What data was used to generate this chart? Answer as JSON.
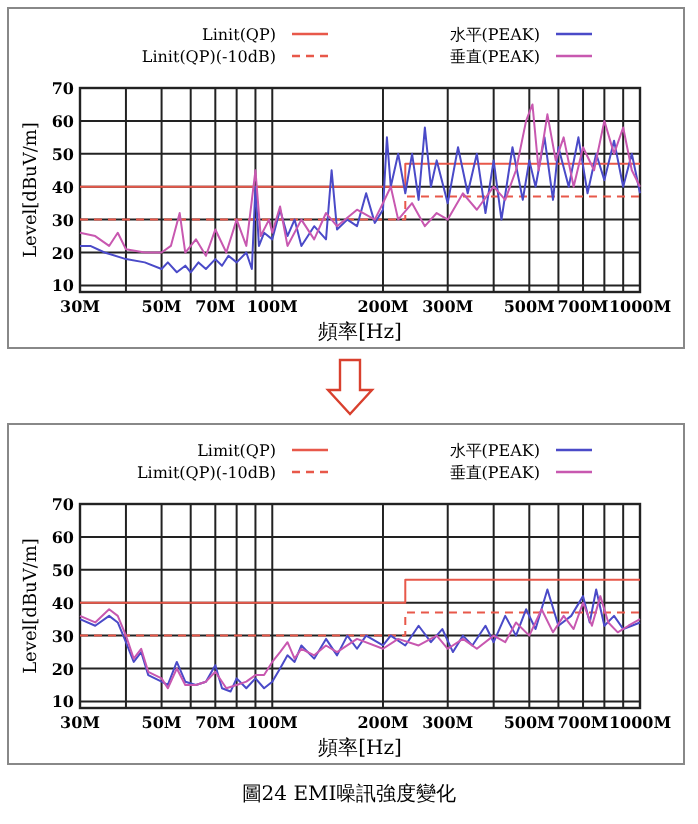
{
  "chart_data": [
    {
      "type": "line",
      "xlabel": "頻率[Hz]",
      "ylabel": "Level[dBuV/m]",
      "log": "x",
      "grid": true,
      "legend": "top",
      "xlim": [
        30,
        1000
      ],
      "ylim": [
        8,
        70
      ],
      "yticks": [
        10,
        20,
        30,
        40,
        50,
        60,
        70
      ],
      "xticks": [
        {
          "value": 30,
          "label": "30M"
        },
        {
          "value": 40,
          "label": null
        },
        {
          "value": 50,
          "label": "50M"
        },
        {
          "value": 60,
          "label": null
        },
        {
          "value": 70,
          "label": "70M"
        },
        {
          "value": 80,
          "label": null
        },
        {
          "value": 90,
          "label": null
        },
        {
          "value": 100,
          "label": "100M"
        },
        {
          "value": 200,
          "label": "200M"
        },
        {
          "value": 300,
          "label": "300M"
        },
        {
          "value": 400,
          "label": null
        },
        {
          "value": 500,
          "label": "500M"
        },
        {
          "value": 600,
          "label": null
        },
        {
          "value": 700,
          "label": "700M"
        },
        {
          "value": 800,
          "label": null
        },
        {
          "value": 900,
          "label": null
        },
        {
          "value": 1000,
          "label": "1000M"
        }
      ],
      "series": [
        {
          "name": "Linit(QP)",
          "color": "#e8584a",
          "line_style": "solid",
          "x": [
            30,
            230,
            230,
            1000
          ],
          "values": [
            40,
            40,
            47,
            47
          ]
        },
        {
          "name": "Linit(QP)(-10dB)",
          "color": "#e8584a",
          "line_style": "dashed",
          "x": [
            30,
            230,
            230,
            1000
          ],
          "values": [
            30,
            30,
            37,
            37
          ]
        },
        {
          "name": "水平(PEAK)",
          "color": "#4a4ac8",
          "line_style": "solid",
          "x": [
            30,
            32,
            35,
            40,
            45,
            50,
            52,
            55,
            58,
            60,
            63,
            66,
            70,
            73,
            76,
            80,
            85,
            88,
            90,
            92,
            95,
            100,
            105,
            110,
            115,
            120,
            130,
            140,
            145,
            150,
            160,
            170,
            180,
            190,
            200,
            205,
            210,
            220,
            230,
            240,
            250,
            260,
            270,
            280,
            300,
            320,
            340,
            360,
            380,
            400,
            420,
            450,
            480,
            500,
            520,
            550,
            580,
            600,
            640,
            680,
            720,
            760,
            800,
            850,
            900,
            950,
            1000
          ],
          "values": [
            22,
            22,
            20,
            18,
            17,
            15,
            17,
            14,
            16,
            14,
            17,
            15,
            18,
            16,
            19,
            17,
            20,
            15,
            40,
            22,
            26,
            24,
            33,
            25,
            30,
            22,
            28,
            24,
            45,
            27,
            30,
            28,
            38,
            29,
            33,
            55,
            40,
            50,
            38,
            50,
            36,
            58,
            40,
            48,
            35,
            52,
            38,
            50,
            32,
            48,
            30,
            52,
            36,
            48,
            40,
            55,
            36,
            52,
            40,
            55,
            38,
            50,
            42,
            54,
            40,
            50,
            38
          ]
        },
        {
          "name": "垂直(PEAK)",
          "color": "#c858b0",
          "line_style": "solid",
          "x": [
            30,
            33,
            36,
            38,
            40,
            45,
            50,
            53,
            56,
            58,
            62,
            66,
            70,
            75,
            80,
            85,
            90,
            93,
            98,
            100,
            105,
            110,
            120,
            130,
            140,
            150,
            170,
            190,
            200,
            210,
            220,
            240,
            260,
            280,
            300,
            330,
            360,
            400,
            430,
            460,
            490,
            510,
            530,
            560,
            590,
            620,
            660,
            700,
            750,
            800,
            850,
            900,
            950,
            1000
          ],
          "values": [
            26,
            25,
            22,
            26,
            21,
            20,
            20,
            22,
            32,
            20,
            24,
            19,
            27,
            20,
            30,
            22,
            45,
            25,
            30,
            26,
            34,
            22,
            30,
            24,
            32,
            28,
            33,
            30,
            35,
            40,
            30,
            35,
            28,
            32,
            30,
            38,
            33,
            40,
            36,
            45,
            60,
            65,
            45,
            62,
            48,
            55,
            40,
            52,
            45,
            60,
            50,
            58,
            45,
            40
          ]
        }
      ]
    },
    {
      "type": "line",
      "xlabel": "頻率[Hz]",
      "ylabel": "Level[dBuV/m]",
      "log": "x",
      "grid": true,
      "legend": "top",
      "xlim": [
        30,
        1000
      ],
      "ylim": [
        8,
        70
      ],
      "yticks": [
        10,
        20,
        30,
        40,
        50,
        60,
        70
      ],
      "xticks": [
        {
          "value": 30,
          "label": "30M"
        },
        {
          "value": 40,
          "label": null
        },
        {
          "value": 50,
          "label": "50M"
        },
        {
          "value": 60,
          "label": null
        },
        {
          "value": 70,
          "label": "70M"
        },
        {
          "value": 80,
          "label": null
        },
        {
          "value": 90,
          "label": null
        },
        {
          "value": 100,
          "label": "100M"
        },
        {
          "value": 200,
          "label": "200M"
        },
        {
          "value": 300,
          "label": "300M"
        },
        {
          "value": 400,
          "label": null
        },
        {
          "value": 500,
          "label": "500M"
        },
        {
          "value": 600,
          "label": null
        },
        {
          "value": 700,
          "label": "700M"
        },
        {
          "value": 800,
          "label": null
        },
        {
          "value": 900,
          "label": null
        },
        {
          "value": 1000,
          "label": "1000M"
        }
      ],
      "annotations": [
        "圖24 EMI噪訊強度變化"
      ],
      "series": [
        {
          "name": "Limit(QP)",
          "color": "#e8584a",
          "line_style": "solid",
          "x": [
            30,
            230,
            230,
            1000
          ],
          "values": [
            40,
            40,
            47,
            47
          ]
        },
        {
          "name": "Limit(QP)(-10dB)",
          "color": "#e8584a",
          "line_style": "dashed",
          "x": [
            30,
            230,
            230,
            1000
          ],
          "values": [
            30,
            30,
            37,
            37
          ]
        },
        {
          "name": "水平(PEAK)",
          "color": "#4a4ac8",
          "line_style": "solid",
          "x": [
            30,
            33,
            36,
            38,
            40,
            42,
            44,
            46,
            50,
            52,
            55,
            58,
            62,
            66,
            70,
            73,
            77,
            80,
            85,
            90,
            95,
            100,
            105,
            110,
            115,
            120,
            130,
            140,
            150,
            160,
            170,
            180,
            200,
            210,
            230,
            250,
            270,
            290,
            310,
            330,
            350,
            380,
            400,
            430,
            460,
            490,
            520,
            560,
            600,
            650,
            700,
            730,
            760,
            800,
            850,
            900,
            950,
            1000
          ],
          "values": [
            35,
            33,
            36,
            34,
            28,
            22,
            25,
            18,
            16,
            15,
            22,
            16,
            15,
            16,
            21,
            14,
            13,
            17,
            14,
            17,
            14,
            16,
            20,
            24,
            22,
            27,
            23,
            29,
            24,
            30,
            26,
            30,
            27,
            30,
            27,
            33,
            28,
            32,
            25,
            30,
            27,
            33,
            28,
            36,
            30,
            38,
            32,
            44,
            33,
            36,
            42,
            34,
            44,
            33,
            36,
            32,
            33,
            34
          ]
        },
        {
          "name": "垂直(PEAK)",
          "color": "#c858b0",
          "line_style": "solid",
          "x": [
            30,
            33,
            36,
            38,
            40,
            42,
            44,
            46,
            50,
            52,
            55,
            58,
            62,
            66,
            70,
            75,
            80,
            85,
            90,
            95,
            100,
            105,
            110,
            115,
            120,
            130,
            140,
            150,
            170,
            200,
            220,
            250,
            280,
            300,
            330,
            360,
            400,
            430,
            460,
            500,
            540,
            580,
            620,
            660,
            700,
            740,
            780,
            820,
            870,
            930,
            1000
          ],
          "values": [
            36,
            34,
            38,
            36,
            30,
            23,
            26,
            19,
            17,
            14,
            20,
            15,
            15,
            16,
            19,
            14,
            15,
            16,
            18,
            18,
            22,
            25,
            28,
            23,
            26,
            24,
            27,
            25,
            29,
            26,
            29,
            27,
            30,
            26,
            29,
            26,
            30,
            28,
            34,
            30,
            38,
            31,
            36,
            32,
            40,
            33,
            42,
            34,
            31,
            33,
            35
          ]
        }
      ]
    }
  ]
}
